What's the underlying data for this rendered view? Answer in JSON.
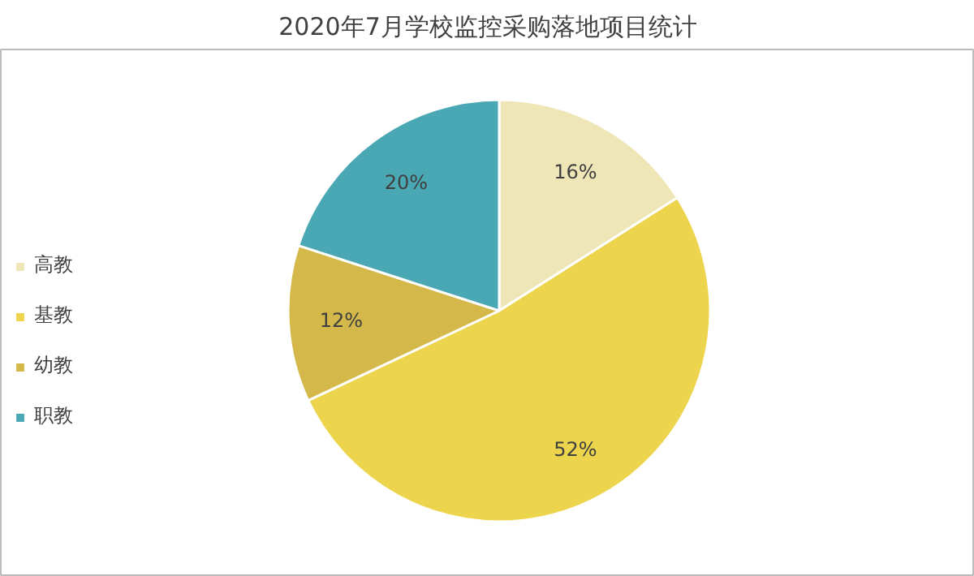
{
  "chart_data": {
    "type": "pie",
    "title": "2020年7月学校监控采购落地项目统计",
    "categories": [
      "高教",
      "基教",
      "幼教",
      "职教"
    ],
    "values": [
      16,
      52,
      12,
      20
    ],
    "colors": [
      "#efe6b8",
      "#ecd44c",
      "#d4b94a",
      "#4aa8b4"
    ],
    "value_labels": [
      "16%",
      "52%",
      "12%",
      "20%"
    ],
    "data_labels": true,
    "legend": "left"
  }
}
